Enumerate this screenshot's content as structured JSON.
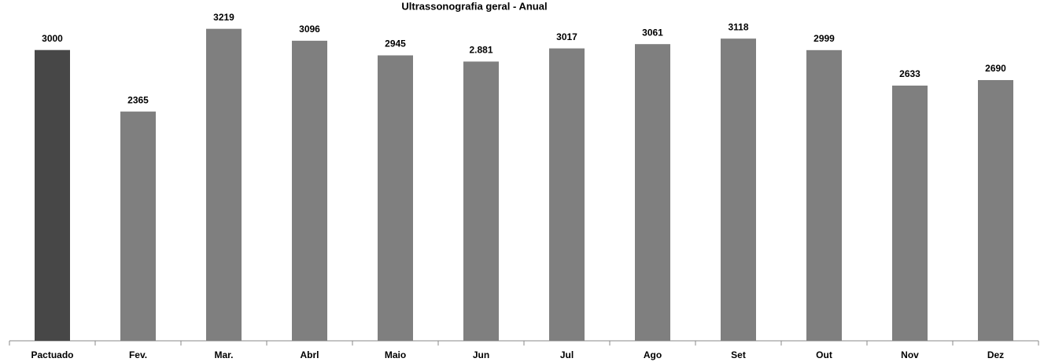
{
  "chart_data": {
    "type": "bar",
    "title": "Ultrassonografia geral - Anual",
    "categories": [
      "Pactuado",
      "Fev.",
      "Mar.",
      "Abrl",
      "Maio",
      "Jun",
      "Jul",
      "Ago",
      "Set",
      "Out",
      "Nov",
      "Dez"
    ],
    "values": [
      3000,
      2365,
      3219,
      3096,
      2945,
      2881,
      3017,
      3061,
      3118,
      2999,
      2633,
      2690
    ],
    "value_labels": [
      "3000",
      "2365",
      "3219",
      "3096",
      "2945",
      "2.881",
      "3017",
      "3061",
      "3118",
      "2999",
      "2633",
      "2690"
    ],
    "colors": [
      "#474747",
      "#7f7f7f",
      "#7f7f7f",
      "#7f7f7f",
      "#7f7f7f",
      "#7f7f7f",
      "#7f7f7f",
      "#7f7f7f",
      "#7f7f7f",
      "#7f7f7f",
      "#7f7f7f",
      "#7f7f7f"
    ],
    "ylim": [
      0,
      3500
    ],
    "grid": false
  }
}
